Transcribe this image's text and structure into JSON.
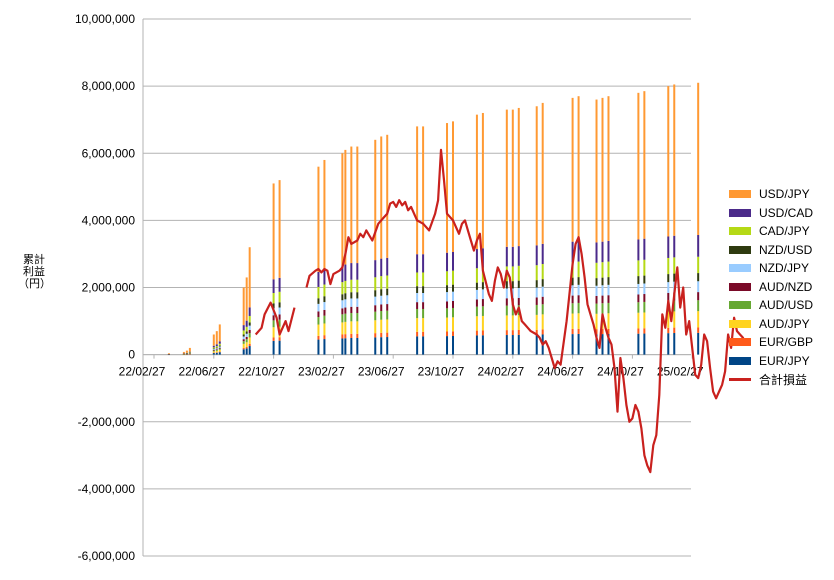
{
  "chart_data": {
    "type": "bar",
    "ylabel": "累計利益\n（円）",
    "ylim": [
      -6000000,
      10000000
    ],
    "yticks": [
      "-6,000,000",
      "-4,000,000",
      "-2,000,000",
      "0",
      "2,000,000",
      "4,000,000",
      "6,000,000",
      "8,000,000",
      "10,000,000"
    ],
    "ytick_values": [
      -6000000,
      -4000000,
      -2000000,
      0,
      2000000,
      4000000,
      6000000,
      8000000,
      10000000
    ],
    "xticks": [
      "22/02/27",
      "22/06/27",
      "22/10/27",
      "23/02/27",
      "23/06/27",
      "23/10/27",
      "24/02/27",
      "24/06/27",
      "24/10/27",
      "25/02/27"
    ],
    "grid": true,
    "legend_position": "right",
    "bar_series": [
      {
        "name": "USD/JPY",
        "color": "#ff9933"
      },
      {
        "name": "USD/CAD",
        "color": "#4b2a8a"
      },
      {
        "name": "CAD/JPY",
        "color": "#b5d916"
      },
      {
        "name": "NZD/USD",
        "color": "#2e3a10"
      },
      {
        "name": "NZD/JPY",
        "color": "#99ccff"
      },
      {
        "name": "AUD/NZD",
        "color": "#7a0a28"
      },
      {
        "name": "AUD/USD",
        "color": "#66a832"
      },
      {
        "name": "AUD/JPY",
        "color": "#ffd320"
      },
      {
        "name": "EUR/GBP",
        "color": "#ff5a1a"
      },
      {
        "name": "EUR/JPY",
        "color": "#004586"
      }
    ],
    "bar_totals": [
      {
        "x": 0.5,
        "v": 40000
      },
      {
        "x": 1.0,
        "v": 80000
      },
      {
        "x": 1.1,
        "v": 120000
      },
      {
        "x": 1.2,
        "v": 200000
      },
      {
        "x": 2.0,
        "v": 600000
      },
      {
        "x": 2.1,
        "v": 700000
      },
      {
        "x": 2.2,
        "v": 900000
      },
      {
        "x": 3.0,
        "v": 2000000
      },
      {
        "x": 3.1,
        "v": 2300000
      },
      {
        "x": 3.2,
        "v": 3200000
      },
      {
        "x": 4.0,
        "v": 5100000
      },
      {
        "x": 4.2,
        "v": 5200000
      },
      {
        "x": 5.5,
        "v": 5600000
      },
      {
        "x": 5.7,
        "v": 5800000
      },
      {
        "x": 6.3,
        "v": 6000000
      },
      {
        "x": 6.4,
        "v": 6100000
      },
      {
        "x": 6.6,
        "v": 6200000
      },
      {
        "x": 6.8,
        "v": 6200000
      },
      {
        "x": 7.4,
        "v": 6400000
      },
      {
        "x": 7.6,
        "v": 6500000
      },
      {
        "x": 7.8,
        "v": 6550000
      },
      {
        "x": 8.8,
        "v": 6800000
      },
      {
        "x": 9.0,
        "v": 6800000
      },
      {
        "x": 9.8,
        "v": 6900000
      },
      {
        "x": 10.0,
        "v": 6950000
      },
      {
        "x": 10.8,
        "v": 7150000
      },
      {
        "x": 11.0,
        "v": 7200000
      },
      {
        "x": 11.8,
        "v": 7300000
      },
      {
        "x": 12.0,
        "v": 7300000
      },
      {
        "x": 12.2,
        "v": 7350000
      },
      {
        "x": 12.8,
        "v": 7400000
      },
      {
        "x": 13.0,
        "v": 7500000
      },
      {
        "x": 14.0,
        "v": 7650000
      },
      {
        "x": 14.2,
        "v": 7700000
      },
      {
        "x": 14.8,
        "v": 7600000
      },
      {
        "x": 15.0,
        "v": 7650000
      },
      {
        "x": 15.2,
        "v": 7700000
      },
      {
        "x": 16.2,
        "v": 7800000
      },
      {
        "x": 16.4,
        "v": 7850000
      },
      {
        "x": 17.2,
        "v": 8000000
      },
      {
        "x": 17.4,
        "v": 8050000
      },
      {
        "x": 18.2,
        "v": 8100000
      }
    ],
    "line_series": {
      "name": "合計損益",
      "color": "#c9211e",
      "segments": [
        [
          [
            3.4,
            600000
          ],
          [
            3.6,
            800000
          ],
          [
            3.7,
            1200000
          ],
          [
            3.9,
            1550000
          ],
          [
            4.1,
            1100000
          ],
          [
            4.2,
            600000
          ],
          [
            4.4,
            1000000
          ],
          [
            4.5,
            700000
          ],
          [
            4.7,
            1400000
          ]
        ],
        [
          [
            5.1,
            2000000
          ],
          [
            5.2,
            2350000
          ],
          [
            5.4,
            2500000
          ],
          [
            5.5,
            2550000
          ],
          [
            5.6,
            2450000
          ],
          [
            5.7,
            2550000
          ],
          [
            5.8,
            2500000
          ],
          [
            5.9,
            2100000
          ],
          [
            6.0,
            2400000
          ],
          [
            6.2,
            2500000
          ],
          [
            6.3,
            2600000
          ],
          [
            6.4,
            3000000
          ],
          [
            6.5,
            3500000
          ],
          [
            6.6,
            3300000
          ],
          [
            6.8,
            3400000
          ],
          [
            6.9,
            3600000
          ],
          [
            7.0,
            3500000
          ],
          [
            7.1,
            3700000
          ],
          [
            7.3,
            3400000
          ],
          [
            7.5,
            3900000
          ],
          [
            7.7,
            4100000
          ],
          [
            7.8,
            4200000
          ],
          [
            7.9,
            4500000
          ],
          [
            8.0,
            4550000
          ],
          [
            8.1,
            4400000
          ],
          [
            8.2,
            4600000
          ],
          [
            8.3,
            4450000
          ],
          [
            8.4,
            4550000
          ],
          [
            8.5,
            4300000
          ],
          [
            8.6,
            4400000
          ],
          [
            8.7,
            4200000
          ],
          [
            8.8,
            4000000
          ],
          [
            9.0,
            3900000
          ],
          [
            9.2,
            3700000
          ],
          [
            9.4,
            4200000
          ],
          [
            9.5,
            4600000
          ],
          [
            9.6,
            6100000
          ],
          [
            9.7,
            5200000
          ],
          [
            9.8,
            4200000
          ],
          [
            10.0,
            4000000
          ],
          [
            10.2,
            3600000
          ],
          [
            10.3,
            3900000
          ],
          [
            10.4,
            4000000
          ],
          [
            10.5,
            3700000
          ],
          [
            10.6,
            3400000
          ],
          [
            10.7,
            3100000
          ],
          [
            10.8,
            3400000
          ],
          [
            10.9,
            3600000
          ],
          [
            11.0,
            2500000
          ],
          [
            11.2,
            1800000
          ],
          [
            11.3,
            1600000
          ],
          [
            11.4,
            2200000
          ],
          [
            11.5,
            2600000
          ],
          [
            11.6,
            2400000
          ],
          [
            11.7,
            2000000
          ],
          [
            11.8,
            2500000
          ],
          [
            11.9,
            2300000
          ],
          [
            12.0,
            1500000
          ],
          [
            12.1,
            1200000
          ],
          [
            12.2,
            1400000
          ],
          [
            12.3,
            1000000
          ],
          [
            12.4,
            900000
          ],
          [
            12.5,
            800000
          ],
          [
            12.6,
            700000
          ],
          [
            12.8,
            600000
          ],
          [
            12.9,
            500000
          ],
          [
            13.0,
            300000
          ],
          [
            13.1,
            400000
          ],
          [
            13.2,
            200000
          ],
          [
            13.3,
            -100000
          ],
          [
            13.4,
            -400000
          ],
          [
            13.5,
            -200000
          ],
          [
            13.6,
            -300000
          ],
          [
            13.8,
            1000000
          ],
          [
            14.0,
            2700000
          ],
          [
            14.1,
            3300000
          ],
          [
            14.2,
            3500000
          ],
          [
            14.3,
            3000000
          ],
          [
            14.4,
            2300000
          ],
          [
            14.5,
            1500000
          ],
          [
            14.6,
            1200000
          ],
          [
            14.7,
            900000
          ],
          [
            14.8,
            500000
          ],
          [
            14.9,
            200000
          ],
          [
            15.0,
            1200000
          ],
          [
            15.1,
            800000
          ],
          [
            15.2,
            500000
          ],
          [
            15.3,
            300000
          ],
          [
            15.4,
            -400000
          ],
          [
            15.5,
            -1700000
          ],
          [
            15.6,
            -100000
          ],
          [
            15.7,
            -700000
          ],
          [
            15.8,
            -1500000
          ],
          [
            15.9,
            -2000000
          ],
          [
            16.0,
            -1900000
          ],
          [
            16.1,
            -1500000
          ],
          [
            16.2,
            -1700000
          ],
          [
            16.3,
            -2200000
          ],
          [
            16.4,
            -3000000
          ],
          [
            16.5,
            -3300000
          ],
          [
            16.6,
            -3500000
          ],
          [
            16.7,
            -2700000
          ],
          [
            16.8,
            -2400000
          ],
          [
            16.9,
            -1200000
          ],
          [
            17.0,
            1200000
          ],
          [
            17.1,
            800000
          ],
          [
            17.2,
            1600000
          ],
          [
            17.3,
            1000000
          ],
          [
            17.4,
            1800000
          ],
          [
            17.5,
            2600000
          ],
          [
            17.6,
            1400000
          ],
          [
            17.7,
            2000000
          ],
          [
            17.8,
            600000
          ],
          [
            17.9,
            1000000
          ],
          [
            18.0,
            200000
          ],
          [
            18.1,
            -600000
          ],
          [
            18.2,
            -700000
          ],
          [
            18.3,
            -300000
          ],
          [
            18.4,
            600000
          ],
          [
            18.5,
            400000
          ],
          [
            18.6,
            -400000
          ],
          [
            18.7,
            -1100000
          ],
          [
            18.8,
            -1300000
          ],
          [
            18.9,
            -1100000
          ],
          [
            19.0,
            -900000
          ],
          [
            19.1,
            -500000
          ],
          [
            19.2,
            600000
          ],
          [
            19.3,
            200000
          ],
          [
            19.4,
            1100000
          ],
          [
            19.5,
            700000
          ],
          [
            19.6,
            600000
          ],
          [
            19.7,
            500000
          ],
          [
            19.8,
            300000
          ]
        ]
      ]
    }
  }
}
